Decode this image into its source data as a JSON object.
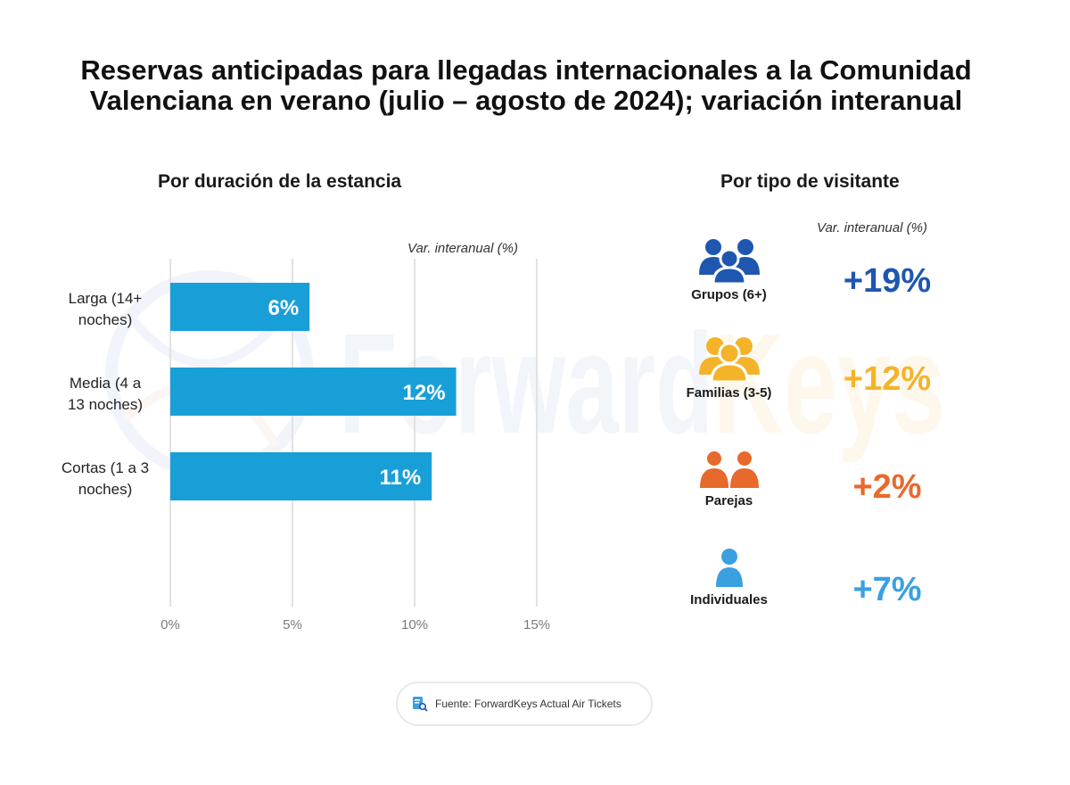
{
  "title_line1": "Reservas anticipadas para llegadas internacionales a la Comunidad",
  "title_line2": "Valenciana en verano (julio – agosto de 2024); variación interanual",
  "watermark": {
    "part1": "Forward",
    "part2": "Keys"
  },
  "left_panel": {
    "title": "Por duración de la estancia",
    "axis_caption": "Var. interanual (%)"
  },
  "right_panel": {
    "title": "Por tipo de visitante",
    "axis_caption": "Var. interanual (%)",
    "visitors": [
      {
        "label": "Grupos (6+)",
        "value": "+19%",
        "icon": "group-icon",
        "color": "#1f56b0"
      },
      {
        "label": "Familias (3-5)",
        "value": "+12%",
        "icon": "family-icon",
        "color": "#f5b32a"
      },
      {
        "label": "Parejas",
        "value": "+2%",
        "icon": "couple-icon",
        "color": "#e8692c"
      },
      {
        "label": "Individuales",
        "value": "+7%",
        "icon": "person-icon",
        "color": "#3aa0e0"
      }
    ]
  },
  "source": {
    "text": "Fuente: ForwardKeys Actual Air Tickets",
    "icon": "document-search-icon"
  },
  "chart_data": [
    {
      "type": "bar",
      "orientation": "horizontal",
      "title": "Por duración de la estancia",
      "xlabel": "Var. interanual (%)",
      "ylabel": "",
      "categories": [
        [
          "Larga (14+",
          "noches)"
        ],
        [
          "Media (4 a",
          "13 noches)"
        ],
        [
          "Cortas (1 a 3",
          "noches)"
        ]
      ],
      "category_names": [
        "Larga (14+ noches)",
        "Media (4 a 13 noches)",
        "Cortas (1 a 3 noches)"
      ],
      "values": [
        5.7,
        11.7,
        10.7
      ],
      "data_labels": [
        "6%",
        "12%",
        "11%"
      ],
      "xlim": [
        0,
        15
      ],
      "xticks": [
        0,
        5,
        10,
        15
      ],
      "xtick_labels": [
        "0%",
        "5%",
        "10%",
        "15%"
      ],
      "grid": true,
      "bar_color": "#199fd8"
    },
    {
      "type": "table",
      "title": "Por tipo de visitante",
      "columns": [
        "Tipo de visitante",
        "Var. interanual (%)"
      ],
      "rows": [
        [
          "Grupos (6+)",
          19
        ],
        [
          "Familias (3-5)",
          12
        ],
        [
          "Parejas",
          2
        ],
        [
          "Individuales",
          7
        ]
      ]
    }
  ]
}
